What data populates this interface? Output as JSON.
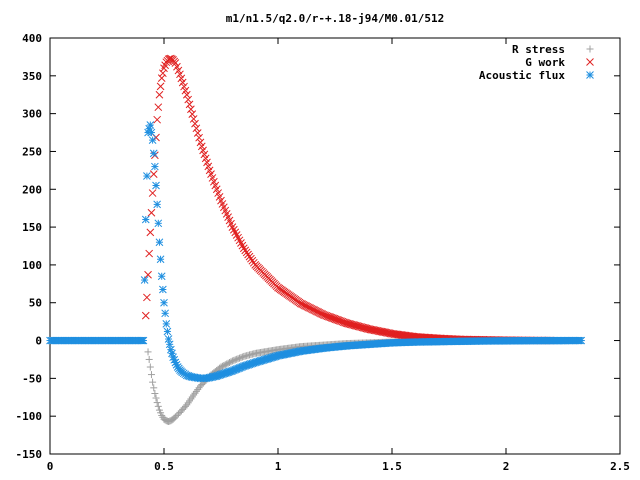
{
  "chart_data": {
    "type": "scatter",
    "title": "m1/n1.5/q2.0/r-+.18-j94/M0.01/512",
    "xlabel": "",
    "ylabel": "",
    "xlim": [
      0,
      2.5
    ],
    "ylim": [
      -150,
      400
    ],
    "xticks": [
      0,
      0.5,
      1,
      1.5,
      2,
      2.5
    ],
    "xtick_labels": [
      "0",
      "0.5",
      "1",
      "1.5",
      "2",
      "2.5"
    ],
    "yticks": [
      -150,
      -100,
      -50,
      0,
      50,
      100,
      150,
      200,
      250,
      300,
      350,
      400
    ],
    "ytick_labels": [
      "-150",
      "-100",
      "-50",
      "0",
      "50",
      "100",
      "150",
      "200",
      "250",
      "300",
      "350",
      "400"
    ],
    "grid": false,
    "legend_position": "top-right",
    "series": [
      {
        "name": "R stress",
        "marker": "plus",
        "color": "#a0a0a0",
        "x": [
          0.43,
          0.44,
          0.45,
          0.46,
          0.47,
          0.48,
          0.49,
          0.5,
          0.51,
          0.52,
          0.53,
          0.54,
          0.55,
          0.57,
          0.6,
          0.63,
          0.66,
          0.7,
          0.75,
          0.8,
          0.85,
          0.9,
          1.0,
          1.1,
          1.2,
          1.3,
          1.4,
          1.5,
          1.6,
          1.7,
          1.8,
          1.9,
          2.0,
          2.1,
          2.2,
          2.33
        ],
        "y": [
          -15,
          -35,
          -55,
          -70,
          -82,
          -92,
          -99,
          -104,
          -106,
          -107,
          -106,
          -104,
          -101,
          -95,
          -85,
          -72,
          -60,
          -47,
          -35,
          -27,
          -21,
          -17,
          -12,
          -8,
          -6,
          -4,
          -3,
          -2,
          -1.5,
          -1,
          -0.8,
          -0.5,
          -0.3,
          -0.2,
          -0.1,
          0
        ]
      },
      {
        "name": "G work",
        "marker": "cross",
        "color": "#e02020",
        "x": [
          0.42,
          0.425,
          0.43,
          0.435,
          0.44,
          0.45,
          0.46,
          0.47,
          0.48,
          0.49,
          0.5,
          0.51,
          0.52,
          0.53,
          0.54,
          0.55,
          0.57,
          0.6,
          0.63,
          0.66,
          0.7,
          0.75,
          0.8,
          0.85,
          0.9,
          1.0,
          1.1,
          1.2,
          1.3,
          1.4,
          1.5,
          1.6,
          1.7,
          1.8,
          1.9,
          2.0,
          2.1,
          2.2
        ],
        "y": [
          33,
          57,
          87,
          115,
          143,
          195,
          245,
          292,
          325,
          347,
          360,
          368,
          372,
          373,
          371,
          367,
          352,
          325,
          293,
          262,
          225,
          185,
          150,
          122,
          100,
          70,
          49,
          34,
          23,
          15,
          9,
          5,
          3,
          1.5,
          1,
          0.5,
          0.2,
          0
        ]
      },
      {
        "name": "Acoustic flux",
        "marker": "star",
        "color": "#1f8fe0",
        "x": [
          0.0,
          0.05,
          0.1,
          0.15,
          0.2,
          0.25,
          0.3,
          0.35,
          0.4,
          0.41,
          0.42,
          0.43,
          0.44,
          0.45,
          0.46,
          0.47,
          0.48,
          0.49,
          0.5,
          0.51,
          0.52,
          0.53,
          0.54,
          0.55,
          0.56,
          0.57,
          0.58,
          0.6,
          0.62,
          0.64,
          0.66,
          0.68,
          0.7,
          0.73,
          0.76,
          0.8,
          0.85,
          0.9,
          1.0,
          1.1,
          1.2,
          1.3,
          1.4,
          1.5,
          1.6,
          1.7,
          1.8,
          1.9,
          2.0,
          2.1,
          2.2,
          2.33
        ],
        "y": [
          0,
          0,
          0,
          0,
          0,
          0,
          0,
          0,
          0,
          0,
          160,
          275,
          285,
          265,
          230,
          180,
          130,
          85,
          50,
          22,
          2,
          -12,
          -22,
          -29,
          -35,
          -39,
          -42,
          -46,
          -48,
          -49,
          -50,
          -50,
          -49,
          -47,
          -44,
          -40,
          -34,
          -29,
          -20,
          -14,
          -10,
          -7,
          -5,
          -3,
          -2,
          -1.5,
          -1,
          -0.6,
          -0.4,
          -0.2,
          -0.1,
          0
        ]
      }
    ]
  }
}
